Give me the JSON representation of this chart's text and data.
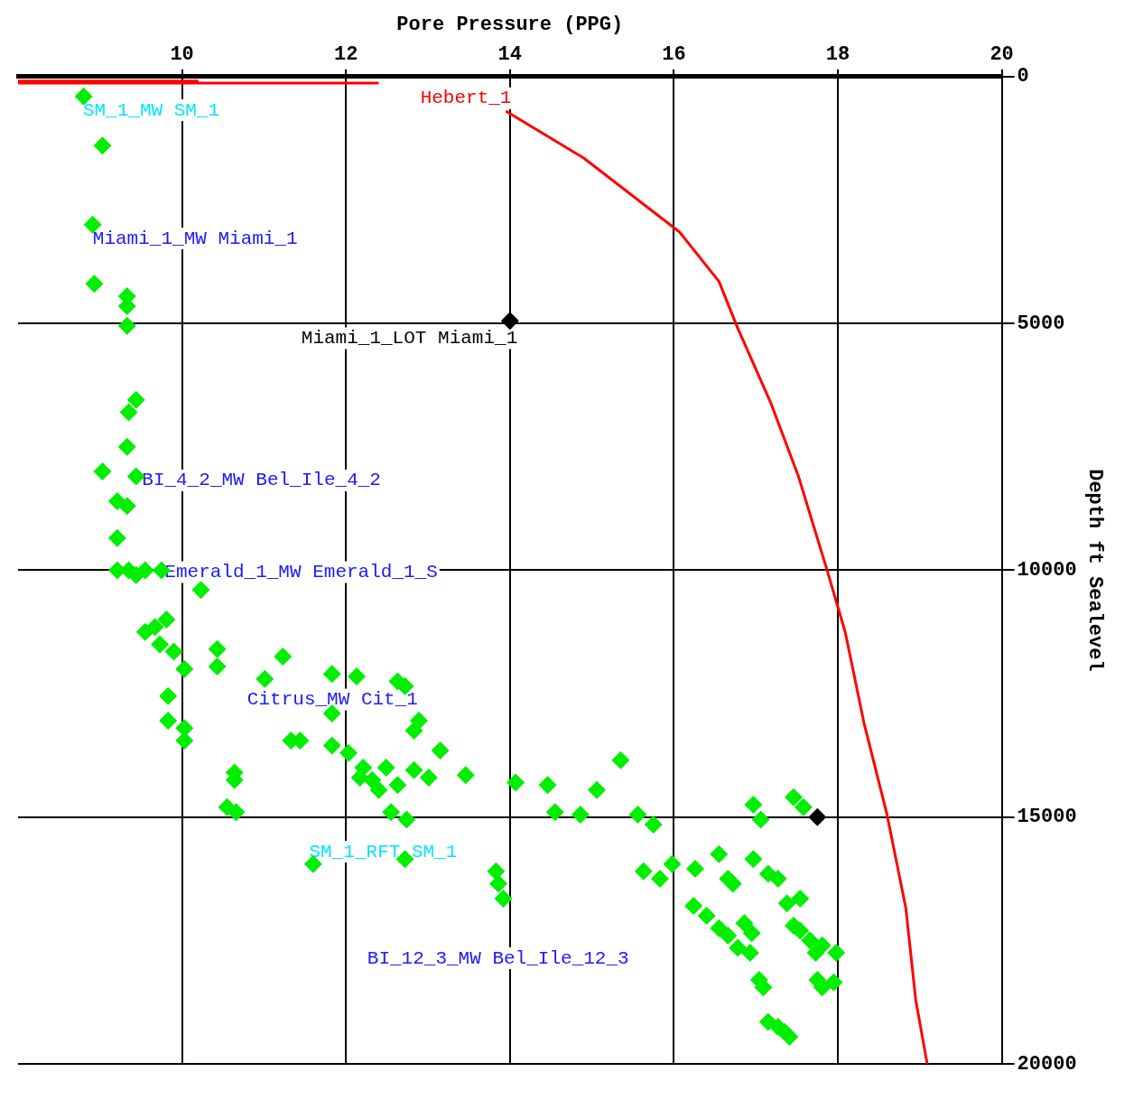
{
  "chart_data": {
    "type": "scatter",
    "xlabel": "Pore Pressure (PPG)",
    "ylabel": "Depth ft Sealevel",
    "xlim": [
      8,
      20
    ],
    "ylim": [
      20000,
      0
    ],
    "xticks": [
      10,
      12,
      14,
      16,
      18,
      20
    ],
    "yticks": [
      0,
      5000,
      10000,
      15000,
      20000
    ],
    "grid": true,
    "series": [
      {
        "type": "scatter",
        "color": "#00ee00",
        "marker": "diamond",
        "x": [
          8.8,
          9.03,
          8.91,
          8.93,
          9.33,
          9.33,
          9.33,
          9.44,
          9.35,
          9.33,
          9.03,
          9.44,
          9.21,
          9.33,
          9.21,
          9.21,
          9.35,
          9.44,
          9.55,
          9.75,
          10.23,
          9.55,
          9.67,
          9.81,
          9.73,
          9.9,
          10.03,
          10.43,
          10.43,
          11.01,
          11.23,
          11.83,
          12.13,
          12.63,
          12.72,
          9.83,
          9.83,
          10.03,
          10.03,
          11.83,
          11.33,
          11.44,
          12.89,
          12.83,
          11.83,
          12.03,
          12.21,
          12.17,
          12.32,
          12.49,
          12.4,
          12.63,
          12.55,
          12.74,
          12.83,
          13.01,
          13.15,
          13.46,
          10.64,
          10.64,
          10.55,
          10.66,
          11.6,
          12.72,
          13.83,
          13.86,
          13.92,
          14.07,
          14.46,
          14.55,
          14.86,
          15.06,
          15.35,
          15.56,
          15.75,
          15.63,
          15.83,
          15.98,
          16.26,
          16.55,
          16.66,
          16.72,
          16.97,
          17.06,
          16.97,
          17.15,
          17.27,
          17.38,
          17.54,
          17.46,
          17.58,
          16.24,
          16.4,
          16.55,
          16.66,
          16.86,
          16.95,
          16.78,
          16.93,
          17.04,
          17.09,
          17.46,
          17.54,
          17.66,
          17.81,
          17.73,
          17.98,
          17.75,
          17.81,
          17.95,
          17.15,
          17.35,
          17.41,
          17.27
        ],
        "values": [
          400,
          1400,
          3000,
          4200,
          4450,
          4650,
          5050,
          6550,
          6800,
          7500,
          8000,
          8100,
          8600,
          8700,
          9350,
          10000,
          10000,
          10100,
          10000,
          10000,
          10400,
          11250,
          11150,
          11000,
          11500,
          11650,
          12000,
          11600,
          11950,
          12200,
          11750,
          12100,
          12150,
          12250,
          12350,
          12550,
          13050,
          13200,
          13450,
          12900,
          13450,
          13450,
          13050,
          13250,
          13550,
          13700,
          14000,
          14200,
          14250,
          14000,
          14450,
          14350,
          14900,
          15050,
          14050,
          14200,
          13650,
          14150,
          14100,
          14250,
          14800,
          14900,
          15950,
          15850,
          16100,
          16350,
          16650,
          14300,
          14350,
          14900,
          14950,
          14450,
          13850,
          14950,
          15150,
          16100,
          16250,
          15950,
          16050,
          15750,
          16250,
          16350,
          14750,
          15050,
          15850,
          16150,
          16250,
          16750,
          16650,
          14600,
          14800,
          16800,
          17000,
          17250,
          17400,
          17150,
          17350,
          17650,
          17750,
          18300,
          18450,
          17200,
          17300,
          17500,
          17600,
          17750,
          17750,
          18300,
          18450,
          18350,
          19150,
          19350,
          19450,
          19250
        ]
      },
      {
        "type": "scatter",
        "color": "#000000",
        "marker": "diamond",
        "x": [
          14,
          17.75
        ],
        "values": [
          4950,
          15000
        ]
      },
      {
        "type": "line",
        "color": "#ff0000",
        "marker": "none",
        "x": [
          13.95,
          14.9,
          16.07,
          16.55,
          16.78,
          17.18,
          17.52,
          17.86,
          18.09,
          18.32,
          18.6,
          18.83,
          18.95,
          19.09
        ],
        "values": [
          700,
          1650,
          3150,
          4150,
          5100,
          6600,
          8100,
          9950,
          11250,
          13100,
          14950,
          16850,
          18700,
          20000
        ]
      },
      {
        "type": "line",
        "color": "#ff0000",
        "marker": "none",
        "x": [
          8,
          10.2
        ],
        "values": [
          90,
          90
        ]
      },
      {
        "type": "line",
        "color": "#ff0000",
        "marker": "none",
        "x": [
          8,
          12.4
        ],
        "values": [
          130,
          130
        ]
      }
    ],
    "annotations": [
      "SM_1_MW SM_1",
      "Hebert_1",
      "Miami_1_MW Miami_1",
      "Miami_1_LOT Miami_1",
      "BI_4_2_MW Bel_Ile_4_2",
      "Emerald_1_MW Emerald_1_S",
      "Citrus_MW Cit_1",
      "SM_1_RFT SM_1",
      "BI_12_3_MW Bel_Ile_12_3"
    ]
  }
}
